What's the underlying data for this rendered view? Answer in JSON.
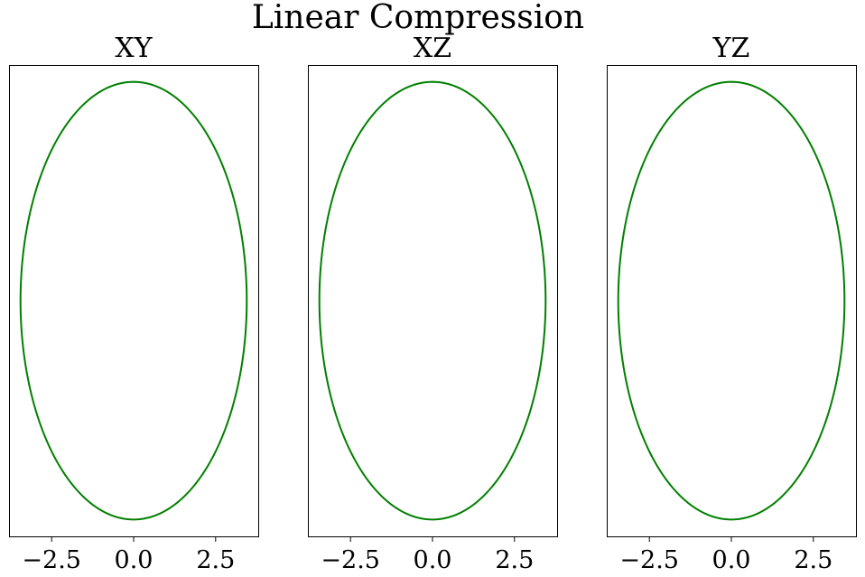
{
  "chart_data": {
    "type": "line",
    "title": "Linear Compression",
    "line_color": "#008000",
    "panels": [
      {
        "title": "XY",
        "xticks": [
          -2.5,
          0.0,
          2.5
        ],
        "xtick_labels": [
          "−2.5",
          "0.0",
          "2.5"
        ],
        "xlim": [
          -3.8,
          3.8
        ],
        "ylim": [
          -7.0,
          7.0
        ],
        "series": [
          {
            "shape": "ellipse",
            "center": [
              0,
              0
            ],
            "x_radius": 3.45,
            "y_radius": 6.5
          }
        ]
      },
      {
        "title": "XZ",
        "xticks": [
          -2.5,
          0.0,
          2.5
        ],
        "xtick_labels": [
          "−2.5",
          "0.0",
          "2.5"
        ],
        "xlim": [
          -3.8,
          3.8
        ],
        "ylim": [
          -7.0,
          7.0
        ],
        "series": [
          {
            "shape": "ellipse",
            "center": [
              0,
              0
            ],
            "x_radius": 3.45,
            "y_radius": 6.5
          }
        ]
      },
      {
        "title": "YZ",
        "xticks": [
          -2.5,
          0.0,
          2.5
        ],
        "xtick_labels": [
          "−2.5",
          "0.0",
          "2.5"
        ],
        "xlim": [
          -3.8,
          3.8
        ],
        "ylim": [
          -7.0,
          7.0
        ],
        "series": [
          {
            "shape": "ellipse",
            "center": [
              0,
              0
            ],
            "x_radius": 3.45,
            "y_radius": 6.5
          }
        ]
      }
    ]
  }
}
